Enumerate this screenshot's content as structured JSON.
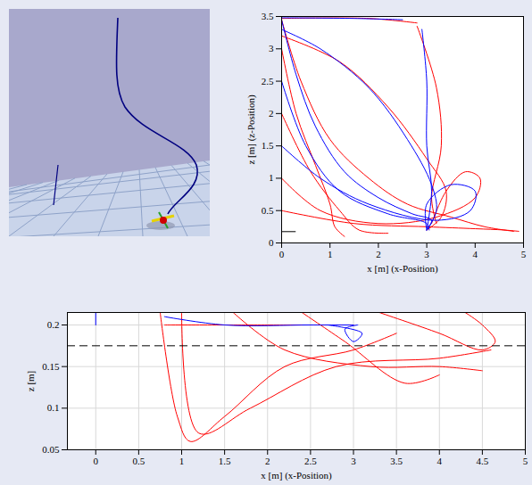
{
  "chart_data": [
    {
      "type": "line",
      "xlabel": "x [m] (x-Position)",
      "ylabel": "z [m] (z-Position)",
      "xlim": [
        0,
        5
      ],
      "xticks": [
        0,
        1,
        2,
        3,
        4,
        5
      ],
      "ylim": [
        0,
        3.5
      ],
      "yticks": [
        0,
        0.5,
        1,
        1.5,
        2,
        2.5,
        3,
        3.5
      ],
      "grid": false,
      "hline": {
        "value": 0.175,
        "from": 0,
        "to": 0.3,
        "line_style": "solid",
        "color": "#000000"
      },
      "series": [
        {
          "color": "#ff0000",
          "x": [
            0,
            0.4,
            1,
            1.8,
            2.6,
            3.5,
            4.2,
            4.8
          ],
          "y": [
            3.45,
            2.5,
            1.6,
            1.0,
            0.6,
            0.4,
            0.25,
            0.18
          ]
        },
        {
          "color": "#ff0000",
          "x": [
            0,
            1.2,
            2.2,
            3,
            3.4,
            3.3,
            3
          ],
          "y": [
            3.2,
            2.8,
            2.1,
            1.3,
            0.8,
            0.4,
            0.2
          ]
        },
        {
          "color": "#ff0000",
          "x": [
            0,
            0.6,
            1.2,
            1.6,
            2.2
          ],
          "y": [
            2.0,
            1.1,
            0.5,
            0.2,
            0.15
          ]
        },
        {
          "color": "#ff0000",
          "x": [
            0,
            1.8,
            2.8
          ],
          "y": [
            3.47,
            3.47,
            3.4
          ]
        },
        {
          "color": "#ff0000",
          "x": [
            0,
            0.8,
            2,
            3.2,
            4,
            4.1,
            3.8,
            3.4,
            3.1
          ],
          "y": [
            1.0,
            0.5,
            0.3,
            0.4,
            0.7,
            1.0,
            1.1,
            0.8,
            0.3
          ]
        },
        {
          "color": "#ff0000",
          "x": [
            0,
            0.3,
            0.7,
            1.0,
            1.1,
            1.3
          ],
          "y": [
            3.0,
            2.0,
            1.2,
            0.6,
            0.25,
            0.1
          ]
        },
        {
          "color": "#ff0000",
          "x": [
            2.8,
            3.2,
            3.3,
            3.1,
            3.2
          ],
          "y": [
            3.35,
            2.4,
            1.5,
            0.7,
            0.3
          ]
        },
        {
          "color": "#ff0000",
          "x": [
            0,
            1.5,
            3,
            4,
            4.6,
            4.9
          ],
          "y": [
            0.5,
            0.3,
            0.25,
            0.22,
            0.2,
            0.18
          ]
        },
        {
          "color": "#0000ff",
          "x": [
            0,
            0.3,
            0.7,
            1.3,
            2,
            2.7,
            3.1,
            3
          ],
          "y": [
            3.45,
            2.6,
            1.8,
            1.1,
            0.7,
            0.45,
            0.35,
            0.2
          ]
        },
        {
          "color": "#0000ff",
          "x": [
            0,
            0.8,
            1.8,
            2.6,
            3.1,
            3.2,
            3
          ],
          "y": [
            3.3,
            3.0,
            2.4,
            1.6,
            0.9,
            0.5,
            0.2
          ]
        },
        {
          "color": "#0000ff",
          "x": [
            0,
            0.5,
            1.2,
            2.2,
            3,
            3.05
          ],
          "y": [
            2.5,
            1.5,
            0.8,
            0.45,
            0.3,
            0.2
          ]
        },
        {
          "color": "#0000ff",
          "x": [
            0,
            1.5,
            2.5
          ],
          "y": [
            3.48,
            3.47,
            3.45
          ]
        },
        {
          "color": "#0000ff",
          "x": [
            2.9,
            3,
            3,
            3.1,
            3
          ],
          "y": [
            3.3,
            2.5,
            1.5,
            0.8,
            0.2
          ]
        },
        {
          "color": "#0000ff",
          "x": [
            0,
            0.8,
            1.8,
            3.2,
            3.9,
            4,
            3.5,
            3,
            3
          ],
          "y": [
            1.5,
            1.0,
            0.6,
            0.35,
            0.5,
            0.8,
            0.9,
            0.6,
            0.2
          ]
        },
        {
          "color": "#0000ff",
          "x": [
            0,
            0
          ],
          "y": [
            0.2,
            3.5
          ]
        }
      ]
    },
    {
      "type": "line",
      "xlabel": "x [m] (x-Position)",
      "ylabel": "z [m]",
      "xlim": [
        -0.33,
        5
      ],
      "xticks": [
        0,
        0.5,
        1,
        1.5,
        2,
        2.5,
        3,
        3.5,
        4,
        4.5,
        5
      ],
      "ylim": [
        0.05,
        0.215
      ],
      "yticks": [
        0.05,
        0.1,
        0.15,
        0.2
      ],
      "grid": true,
      "hline": {
        "value": 0.175,
        "from": -0.33,
        "to": 5,
        "line_style": "dashed",
        "color": "#000000"
      },
      "series": [
        {
          "color": "#ff0000",
          "x": [
            0.75,
            0.95,
            1.1,
            1.5,
            2.2,
            3,
            3.5
          ],
          "y": [
            0.215,
            0.09,
            0.06,
            0.09,
            0.15,
            0.17,
            0.19
          ]
        },
        {
          "color": "#ff0000",
          "x": [
            1.0,
            1.2,
            1.8,
            2.8,
            4,
            4.6
          ],
          "y": [
            0.215,
            0.07,
            0.1,
            0.15,
            0.16,
            0.17
          ]
        },
        {
          "color": "#ff0000",
          "x": [
            1.6,
            2.2,
            3.2,
            4,
            4.5
          ],
          "y": [
            0.215,
            0.17,
            0.15,
            0.15,
            0.145
          ]
        },
        {
          "color": "#ff0000",
          "x": [
            3.3,
            4,
            4.5,
            4.65,
            4.5,
            4.3
          ],
          "y": [
            0.215,
            0.19,
            0.17,
            0.18,
            0.2,
            0.215
          ]
        },
        {
          "color": "#ff0000",
          "x": [
            2.4,
            2.9,
            3.6,
            4.0
          ],
          "y": [
            0.215,
            0.18,
            0.13,
            0.14
          ]
        },
        {
          "color": "#ff0000",
          "x": [
            0.8,
            2,
            3
          ],
          "y": [
            0.2,
            0.2,
            0.2
          ]
        },
        {
          "color": "#0000ff",
          "x": [
            0.8,
            1.5,
            2.5,
            3
          ],
          "y": [
            0.21,
            0.2,
            0.2,
            0.2
          ]
        },
        {
          "color": "#0000ff",
          "x": [
            0,
            0
          ],
          "y": [
            0.2,
            0.215
          ]
        },
        {
          "color": "#0000ff",
          "x": [
            2.7,
            3.1,
            3.0,
            2.9,
            3.05
          ],
          "y": [
            0.2,
            0.19,
            0.18,
            0.195,
            0.2
          ]
        }
      ]
    }
  ]
}
